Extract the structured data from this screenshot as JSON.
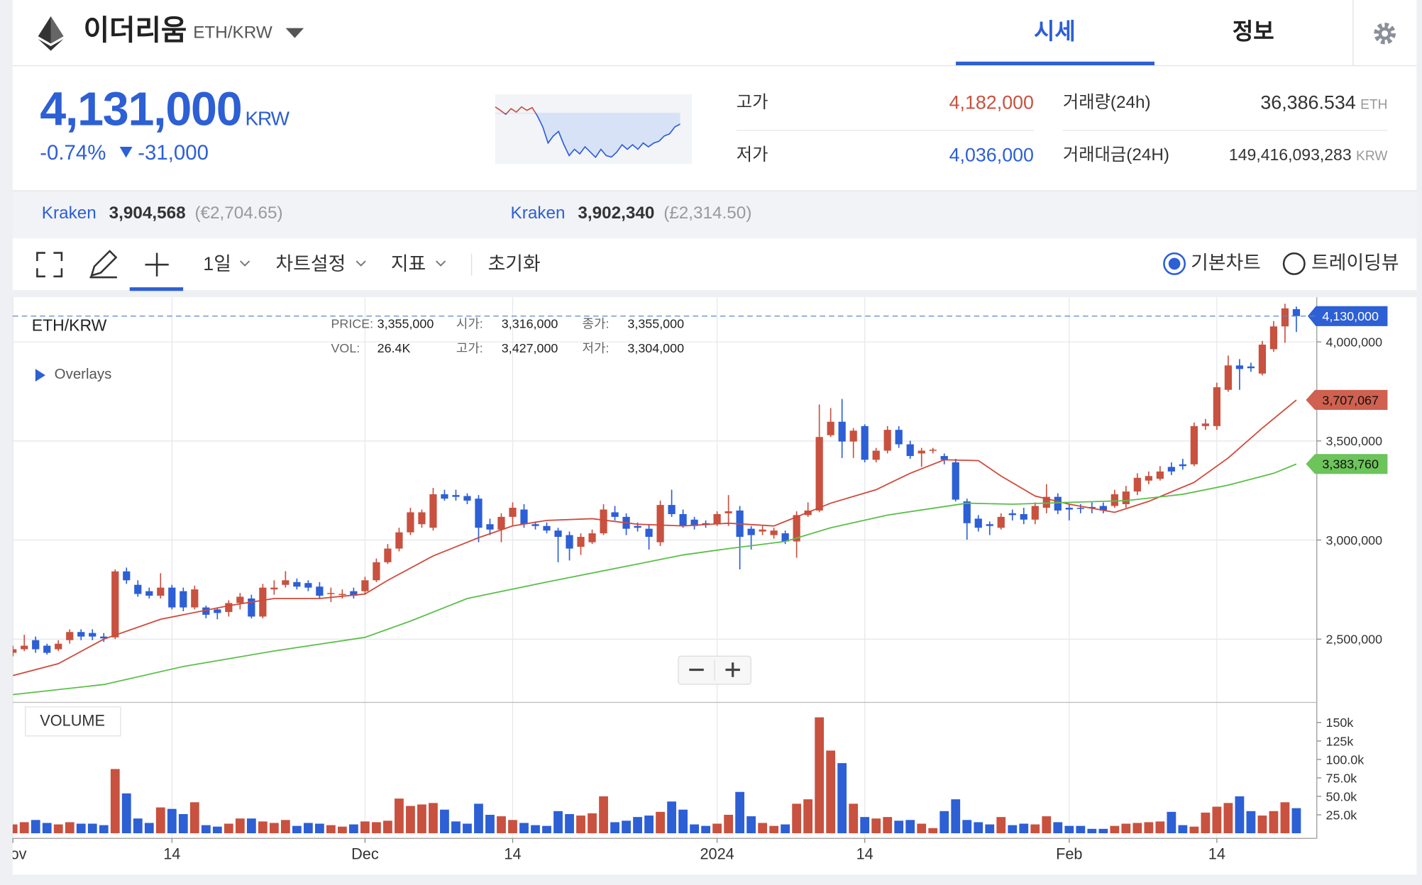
{
  "header": {
    "coin": "이더리움",
    "pair": "ETH/KRW",
    "tabs": [
      "시세",
      "정보"
    ],
    "price": "4,131,000",
    "currency": "KRW",
    "change_rate": "-0.74%",
    "change": "-31,000",
    "stats": [
      {
        "label": "고가",
        "value": "4,182,000"
      },
      {
        "label": "저가",
        "value": "4,036,000"
      },
      {
        "label": "거래량(24h)",
        "value": "36,386.534",
        "unit": "ETH"
      },
      {
        "label": "거래대금(24H)",
        "value": "149,416,093,283",
        "unit": "KRW"
      }
    ],
    "exchanges": [
      {
        "name": "Kraken",
        "price": "3,904,568",
        "fx": "(€2,704.65)"
      },
      {
        "name": "Kraken",
        "price": "3,902,340",
        "fx": "(£2,314.50)"
      }
    ]
  },
  "toolbar": {
    "items": [
      "1일",
      "차트설정",
      "지표",
      "초기화"
    ],
    "modes": [
      "기본차트",
      "트레이딩뷰"
    ]
  },
  "chart_data": [
    {
      "type": "candlestick",
      "symbol": "ETH/KRW",
      "overlays_label": "Overlays",
      "volume_label": "VOLUME",
      "tooltip": [
        {
          "label": "PRICE:",
          "value": "3,355,000"
        },
        {
          "label": "시가:",
          "value": "3,316,000"
        },
        {
          "label": "종가:",
          "value": "3,355,000"
        },
        {
          "label": "VOL:",
          "value": "26.4K"
        },
        {
          "label": "고가:",
          "value": "3,427,000"
        },
        {
          "label": "저가:",
          "value": "3,304,000"
        }
      ],
      "up_color": "#c8513f",
      "down_color": "#2d5fd5",
      "grid": true,
      "xlim": [
        -0.02,
        114.8
      ],
      "xticks": [
        {
          "value": 0,
          "label": "Nov"
        },
        {
          "value": 14,
          "label": "14"
        },
        {
          "value": 31,
          "label": "Dec"
        },
        {
          "value": 44,
          "label": "14"
        },
        {
          "value": 62,
          "label": "2024"
        },
        {
          "value": 75,
          "label": "14"
        },
        {
          "value": 93,
          "label": "Feb"
        },
        {
          "value": 106,
          "label": "14"
        }
      ],
      "ylim": [
        2190000,
        4225000
      ],
      "yticks": [
        {
          "value": 2500000,
          "label": "2,500,000"
        },
        {
          "value": 3000000,
          "label": "3,000,000"
        },
        {
          "value": 3500000,
          "label": "3,500,000"
        },
        {
          "value": 4000000,
          "label": "4,000,000"
        }
      ],
      "vol_ylim": [
        0,
        176000
      ],
      "vol_yticks": [
        {
          "value": 25000,
          "label": "25.0k"
        },
        {
          "value": 50000,
          "label": "50.0k"
        },
        {
          "value": 75000,
          "label": "75.0k"
        },
        {
          "value": 100000,
          "label": "100.0k"
        },
        {
          "value": 125000,
          "label": "125k"
        },
        {
          "value": 150000,
          "label": "150k"
        }
      ],
      "last_price": {
        "value": 4130000,
        "label": "4,130,000"
      },
      "open": [
        2431000,
        2449000,
        2495000,
        2467000,
        2449000,
        2495000,
        2536000,
        2531000,
        2513000,
        2509000,
        2842000,
        2774000,
        2742000,
        2719000,
        2760000,
        2742000,
        2660000,
        2660000,
        2650000,
        2637000,
        2682000,
        2705000,
        2614000,
        2751000,
        2774000,
        2788000,
        2783000,
        2765000,
        2728000,
        2724000,
        2742000,
        2742000,
        2797000,
        2888000,
        2957000,
        3039000,
        3080000,
        3062000,
        3231000,
        3227000,
        3222000,
        3209000,
        3080000,
        3053000,
        3117000,
        3154000,
        3080000,
        3071000,
        3048000,
        3025000,
        2966000,
        2989000,
        3034000,
        3140000,
        3117000,
        3071000,
        3057000,
        2989000,
        3177000,
        3131000,
        3103000,
        3085000,
        3080000,
        3135000,
        3149000,
        3057000,
        3043000,
        3025000,
        3034000,
        2993000,
        3126000,
        3149000,
        3529000,
        3597000,
        3497000,
        3575000,
        3405000,
        3451000,
        3556000,
        3483000,
        3437000,
        3451000,
        3424000,
        3392000,
        3195000,
        3108000,
        3080000,
        3062000,
        3135000,
        3131000,
        3103000,
        3163000,
        3218000,
        3163000,
        3163000,
        3167000,
        3172000,
        3172000,
        3181000,
        3245000,
        3300000,
        3309000,
        3369000,
        3382000,
        3382000,
        3575000,
        3575000,
        3758000,
        3881000,
        3876000,
        3840000,
        3963000,
        4078000,
        4165000
      ],
      "high": [
        2467000,
        2522000,
        2513000,
        2477000,
        2495000,
        2550000,
        2550000,
        2550000,
        2531000,
        2852000,
        2861000,
        2797000,
        2760000,
        2833000,
        2774000,
        2760000,
        2770000,
        2669000,
        2660000,
        2696000,
        2733000,
        2724000,
        2779000,
        2797000,
        2843000,
        2806000,
        2797000,
        2788000,
        2760000,
        2751000,
        2760000,
        2815000,
        2907000,
        2980000,
        3062000,
        3163000,
        3154000,
        3263000,
        3254000,
        3254000,
        3236000,
        3227000,
        3108000,
        3135000,
        3190000,
        3181000,
        3094000,
        3089000,
        3062000,
        3043000,
        3034000,
        3053000,
        3181000,
        3172000,
        3135000,
        3089000,
        3080000,
        3199000,
        3254000,
        3154000,
        3117000,
        3099000,
        3145000,
        3227000,
        3172000,
        3071000,
        3071000,
        3062000,
        3048000,
        3145000,
        3190000,
        3684000,
        3666000,
        3712000,
        3565000,
        3584000,
        3465000,
        3575000,
        3575000,
        3501000,
        3465000,
        3465000,
        3437000,
        3410000,
        3209000,
        3126000,
        3094000,
        3135000,
        3154000,
        3163000,
        3190000,
        3282000,
        3236000,
        3181000,
        3181000,
        3190000,
        3190000,
        3254000,
        3273000,
        3337000,
        3346000,
        3373000,
        3392000,
        3410000,
        3593000,
        3611000,
        3794000,
        3931000,
        3913000,
        3895000,
        4005000,
        4105000,
        4192000,
        4178000
      ],
      "low": [
        2413000,
        2440000,
        2431000,
        2422000,
        2440000,
        2477000,
        2495000,
        2495000,
        2486000,
        2500000,
        2779000,
        2714000,
        2705000,
        2705000,
        2650000,
        2641000,
        2650000,
        2605000,
        2600000,
        2614000,
        2650000,
        2605000,
        2605000,
        2724000,
        2760000,
        2751000,
        2742000,
        2705000,
        2687000,
        2705000,
        2705000,
        2724000,
        2788000,
        2879000,
        2943000,
        3025000,
        3062000,
        3048000,
        3199000,
        3199000,
        3181000,
        2989000,
        3025000,
        2989000,
        3071000,
        3062000,
        3053000,
        3034000,
        2888000,
        2897000,
        2925000,
        2980000,
        3025000,
        3099000,
        3025000,
        3043000,
        2952000,
        2970000,
        3117000,
        3062000,
        3053000,
        3062000,
        3071000,
        3071000,
        2852000,
        2952000,
        3025000,
        3007000,
        2980000,
        2911000,
        3117000,
        3140000,
        3520000,
        3414000,
        3414000,
        3392000,
        3392000,
        3437000,
        3465000,
        3410000,
        3369000,
        3437000,
        3382000,
        3195000,
        3002000,
        3043000,
        3025000,
        3053000,
        3099000,
        3080000,
        3080000,
        3135000,
        3131000,
        3099000,
        3135000,
        3135000,
        3135000,
        3163000,
        3163000,
        3227000,
        3282000,
        3300000,
        3328000,
        3355000,
        3373000,
        3556000,
        3556000,
        3748000,
        3758000,
        3849000,
        3831000,
        3950000,
        3995000,
        4050000
      ],
      "close": [
        2449000,
        2467000,
        2449000,
        2431000,
        2477000,
        2536000,
        2513000,
        2513000,
        2504000,
        2842000,
        2797000,
        2728000,
        2719000,
        2760000,
        2660000,
        2660000,
        2751000,
        2623000,
        2632000,
        2682000,
        2714000,
        2614000,
        2760000,
        2760000,
        2797000,
        2765000,
        2760000,
        2719000,
        2733000,
        2728000,
        2719000,
        2797000,
        2888000,
        2957000,
        3039000,
        3140000,
        3140000,
        3231000,
        3209000,
        3218000,
        3199000,
        3062000,
        3053000,
        3117000,
        3163000,
        3080000,
        3071000,
        3048000,
        3016000,
        2957000,
        3016000,
        3034000,
        3154000,
        3117000,
        3057000,
        3062000,
        3016000,
        3177000,
        3131000,
        3071000,
        3071000,
        3076000,
        3131000,
        3145000,
        3016000,
        3025000,
        3053000,
        3048000,
        2993000,
        3126000,
        3149000,
        3520000,
        3597000,
        3497000,
        3552000,
        3405000,
        3451000,
        3556000,
        3483000,
        3424000,
        3451000,
        3456000,
        3405000,
        3204000,
        3085000,
        3062000,
        3071000,
        3117000,
        3126000,
        3103000,
        3172000,
        3218000,
        3149000,
        3154000,
        3158000,
        3163000,
        3149000,
        3231000,
        3245000,
        3314000,
        3323000,
        3346000,
        3346000,
        3373000,
        3575000,
        3588000,
        3771000,
        3881000,
        3863000,
        3867000,
        3986000,
        4078000,
        4169000,
        4130000
      ],
      "volume": [
        12000,
        15000,
        18000,
        14000,
        12000,
        15000,
        13000,
        13000,
        11000,
        87000,
        54000,
        20000,
        14000,
        35000,
        33000,
        26000,
        42000,
        11000,
        9000,
        13000,
        20000,
        20000,
        16000,
        14000,
        18000,
        10000,
        14000,
        13000,
        11000,
        9000,
        12000,
        16000,
        15000,
        17000,
        47000,
        37000,
        39000,
        41000,
        32000,
        16000,
        13000,
        40000,
        25000,
        23000,
        18000,
        14000,
        11000,
        10000,
        30000,
        26000,
        24000,
        27000,
        50000,
        15000,
        17000,
        22000,
        24000,
        29000,
        43000,
        32000,
        12000,
        10000,
        13000,
        25000,
        56000,
        23000,
        14000,
        10000,
        12000,
        40000,
        46000,
        157000,
        112000,
        95000,
        40000,
        22000,
        20000,
        22000,
        17000,
        18000,
        13000,
        7000,
        30000,
        46000,
        18000,
        15000,
        12000,
        22000,
        11000,
        13000,
        12000,
        23000,
        15000,
        10000,
        10000,
        6000,
        6000,
        10000,
        13000,
        14000,
        15000,
        16000,
        29000,
        11000,
        9000,
        28000,
        36000,
        41000,
        50000,
        30000,
        24000,
        30000,
        42000,
        34000
      ],
      "ma": [
        {
          "color": "#d0493b",
          "tag_color": "#d0604f",
          "x": [
            0,
            4,
            8,
            13,
            19,
            23,
            27,
            31,
            33,
            37,
            41,
            44,
            47,
            51,
            55,
            59,
            63,
            67,
            69,
            72,
            76,
            79,
            82,
            85,
            87,
            90,
            93,
            97,
            100,
            104,
            107,
            110,
            113
          ],
          "values": [
            2316000,
            2376000,
            2500000,
            2600000,
            2669000,
            2705000,
            2705000,
            2728000,
            2797000,
            2920000,
            3012000,
            3071000,
            3099000,
            3108000,
            3080000,
            3071000,
            3085000,
            3071000,
            3117000,
            3186000,
            3254000,
            3337000,
            3405000,
            3401000,
            3323000,
            3222000,
            3181000,
            3140000,
            3195000,
            3291000,
            3414000,
            3565000,
            3707067
          ],
          "last_label": "3,707,067"
        },
        {
          "color": "#5cbf4a",
          "tag_color": "#6cc45a",
          "x": [
            0,
            8,
            15,
            23,
            31,
            35,
            40,
            47,
            55,
            59,
            63,
            68,
            72,
            77,
            84,
            88,
            93,
            98,
            103,
            107,
            111,
            113
          ],
          "values": [
            2220000,
            2271000,
            2362000,
            2440000,
            2509000,
            2591000,
            2705000,
            2788000,
            2879000,
            2925000,
            2957000,
            2993000,
            3062000,
            3126000,
            3186000,
            3181000,
            3190000,
            3199000,
            3231000,
            3277000,
            3337000,
            3383760
          ],
          "last_label": "3,383,760"
        }
      ]
    },
    {
      "type": "line",
      "xlim": [
        0,
        35
      ],
      "ylim": [
        4017000,
        4216000
      ],
      "reference": 4162000,
      "up_color": "#c8513f",
      "down_color": "#2d5fd5",
      "fill_color": "#d8e2f7",
      "values": [
        4180000,
        4170000,
        4159000,
        4175000,
        4165000,
        4180000,
        4170000,
        4178000,
        4154000,
        4123000,
        4077000,
        4097000,
        4110000,
        4072000,
        4041000,
        4059000,
        4046000,
        4066000,
        4051000,
        4036000,
        4059000,
        4041000,
        4037000,
        4051000,
        4072000,
        4059000,
        4072000,
        4059000,
        4077000,
        4066000,
        4077000,
        4082000,
        4097000,
        4103000,
        4123000,
        4131000
      ]
    }
  ]
}
